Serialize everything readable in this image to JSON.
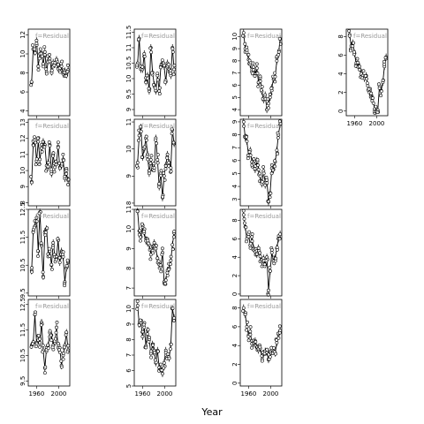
{
  "chart_data": {
    "type": "scatter",
    "xlabel": "Year",
    "panel_label": "f=Residual",
    "x_ticks": [
      1960,
      2000
    ],
    "x_range": [
      1945,
      2020
    ],
    "points_per_year": 2,
    "layout": "3 rows in columns 1-3, 1 row in column 4; x tick labels on bottom row panels only",
    "panels": [
      {
        "id": "c1r1",
        "col": 1,
        "row": 1,
        "ylim": [
          3.5,
          12.6
        ],
        "yticks": [
          4,
          6,
          8,
          10,
          12
        ],
        "series": [
          7,
          10.5,
          10.2,
          11.4,
          8.7,
          10,
          10.1,
          8.9,
          10.2,
          8.1,
          9.3,
          9.5,
          8.1,
          9.1,
          8.9,
          9.4,
          8.5,
          8.5,
          8.7,
          7.9,
          8.2,
          7.8,
          8.3
        ]
      },
      {
        "id": "c1r2",
        "col": 1,
        "row": 2,
        "ylim": [
          7.8,
          13.2
        ],
        "yticks": [
          8,
          9,
          10,
          11,
          12,
          13
        ],
        "series": [
          9.3,
          11.6,
          11.9,
          10.6,
          11.8,
          10.7,
          11.4,
          11.8,
          11.6,
          10.3,
          10.5,
          11.6,
          9.8,
          11,
          10.2,
          10.5,
          11.5,
          10.2,
          10.3,
          10.7,
          9.5,
          9.8,
          9.4
        ]
      },
      {
        "id": "c1r3",
        "col": 1,
        "row": 3,
        "ylim": [
          9.4,
          12.5
        ],
        "yticks": [
          9.5,
          10.5,
          11.5,
          12.5
        ],
        "series": [
          10.3,
          11.7,
          11.9,
          12.2,
          11,
          12.4,
          11.2,
          10.1,
          11.7,
          11.8,
          10.9,
          11,
          10.5,
          11.3,
          10.8,
          10.8,
          11.4,
          10.6,
          11,
          10.8,
          9.9,
          10.4,
          10.6
        ]
      },
      {
        "id": "c1r4",
        "col": 1,
        "row": 4,
        "ylim": [
          9.3,
          12.7
        ],
        "yticks": [
          9.5,
          10.5,
          11.5,
          12.5
        ],
        "series": [
          10.9,
          11,
          12.1,
          11,
          11.1,
          11,
          11.8,
          10.7,
          10,
          10.8,
          10.9,
          11.4,
          11.3,
          10.9,
          11,
          11.6,
          10.8,
          10.8,
          10.1,
          10.5,
          10.9,
          11.4,
          10.7
        ]
      },
      {
        "id": "c2r1",
        "col": 2,
        "row": 1,
        "ylim": [
          8.8,
          11.6
        ],
        "yticks": [
          9.0,
          9.5,
          10.0,
          10.5,
          11.0,
          11.5
        ],
        "series": [
          10.5,
          11.3,
          10.3,
          10.3,
          10.8,
          9.9,
          10.1,
          9.6,
          11,
          10.2,
          9.8,
          9.6,
          10.1,
          9.6,
          10.4,
          10.5,
          10.4,
          9.9,
          10.5,
          10.3,
          10.1,
          11,
          10.3
        ]
      },
      {
        "id": "c2r2",
        "col": 2,
        "row": 2,
        "ylim": [
          7.9,
          11.1
        ],
        "yticks": [
          8.0,
          9.0,
          10.0,
          11.0
        ],
        "series": [
          9.5,
          10.5,
          10.8,
          9.7,
          10,
          10.4,
          9.8,
          9.1,
          9.6,
          9.3,
          9.3,
          10.4,
          9.6,
          8.6,
          9.1,
          8.2,
          9,
          9.4,
          9.8,
          9.5,
          9.3,
          10.7,
          10.2
        ]
      },
      {
        "id": "c2r3",
        "col": 2,
        "row": 3,
        "ylim": [
          6.6,
          11
        ],
        "yticks": [
          7,
          8,
          9,
          10,
          11
        ],
        "series": [
          10.9,
          9.9,
          9.6,
          10.1,
          9.8,
          9.4,
          9.3,
          9.2,
          8.7,
          8.9,
          9.3,
          9,
          8.5,
          8.2,
          8.1,
          8.8,
          7.3,
          7.4,
          7.9,
          8,
          8.4,
          9.2,
          9.8
        ]
      },
      {
        "id": "c2r4",
        "col": 2,
        "row": 4,
        "ylim": [
          5,
          10.6
        ],
        "yticks": [
          5,
          6,
          7,
          8,
          9,
          10
        ],
        "series": [
          10.2,
          9,
          9.1,
          8.2,
          8.8,
          7.6,
          8.6,
          8,
          7.1,
          7.7,
          7.3,
          6.5,
          7.3,
          6.2,
          6.1,
          5.8,
          6.5,
          7.3,
          6.9,
          6.8,
          7.7,
          10,
          9.4
        ]
      },
      {
        "id": "c3r1",
        "col": 3,
        "row": 1,
        "ylim": [
          3.5,
          10.6
        ],
        "yticks": [
          4,
          5,
          6,
          7,
          8,
          9,
          10
        ],
        "series": [
          10.3,
          9,
          8.7,
          8.1,
          7.7,
          7.1,
          7.5,
          6.9,
          7.4,
          6.2,
          6.6,
          5.5,
          4.8,
          5.2,
          4,
          4.5,
          5,
          5.8,
          6.5,
          6.7,
          8,
          8.5,
          9.8
        ]
      },
      {
        "id": "c3r2",
        "col": 3,
        "row": 2,
        "ylim": [
          2.5,
          9.2
        ],
        "yticks": [
          3,
          4,
          5,
          6,
          7,
          8,
          9
        ],
        "series": [
          9,
          7.8,
          7.5,
          6.4,
          6.8,
          5.9,
          5.8,
          5.3,
          6,
          5.3,
          4.8,
          4.2,
          5.2,
          4.1,
          4.5,
          2.8,
          3.5,
          5.4,
          5.3,
          5.9,
          6.8,
          8,
          8.8
        ]
      },
      {
        "id": "c3r3",
        "col": 3,
        "row": 3,
        "ylim": [
          -0.2,
          9.2
        ],
        "yticks": [
          0,
          2,
          4,
          6,
          8
        ],
        "series": [
          8.6,
          7.3,
          6,
          6.5,
          5.3,
          6.2,
          5,
          4.6,
          4.3,
          5,
          4.1,
          3.5,
          3.9,
          3.2,
          4,
          0.4,
          2.5,
          4.5,
          3.6,
          3.9,
          5,
          6,
          6.5
        ]
      },
      {
        "id": "c3r4",
        "col": 3,
        "row": 4,
        "ylim": [
          -0.3,
          8.9
        ],
        "yticks": [
          0,
          2,
          4,
          6,
          8
        ],
        "series": [
          8,
          7.3,
          6,
          5.1,
          5.5,
          4.2,
          4.3,
          4.5,
          3.8,
          3.5,
          3.7,
          2.9,
          3.1,
          3.4,
          3.3,
          2.5,
          2.8,
          3.6,
          3.4,
          3.2,
          4.3,
          5.2,
          5.6
        ]
      },
      {
        "id": "c4r1",
        "col": 4,
        "row": 1,
        "ylim": [
          -0.5,
          8.8
        ],
        "yticks": [
          0,
          2,
          4,
          6,
          8
        ],
        "series": [
          8.2,
          7,
          7.3,
          6.2,
          5,
          5.2,
          4.8,
          4,
          3.8,
          3.5,
          3.8,
          2.7,
          2,
          1.9,
          1.4,
          0.2,
          0,
          0.1,
          2.7,
          2.2,
          3.1,
          4.8,
          5.8
        ]
      }
    ]
  }
}
